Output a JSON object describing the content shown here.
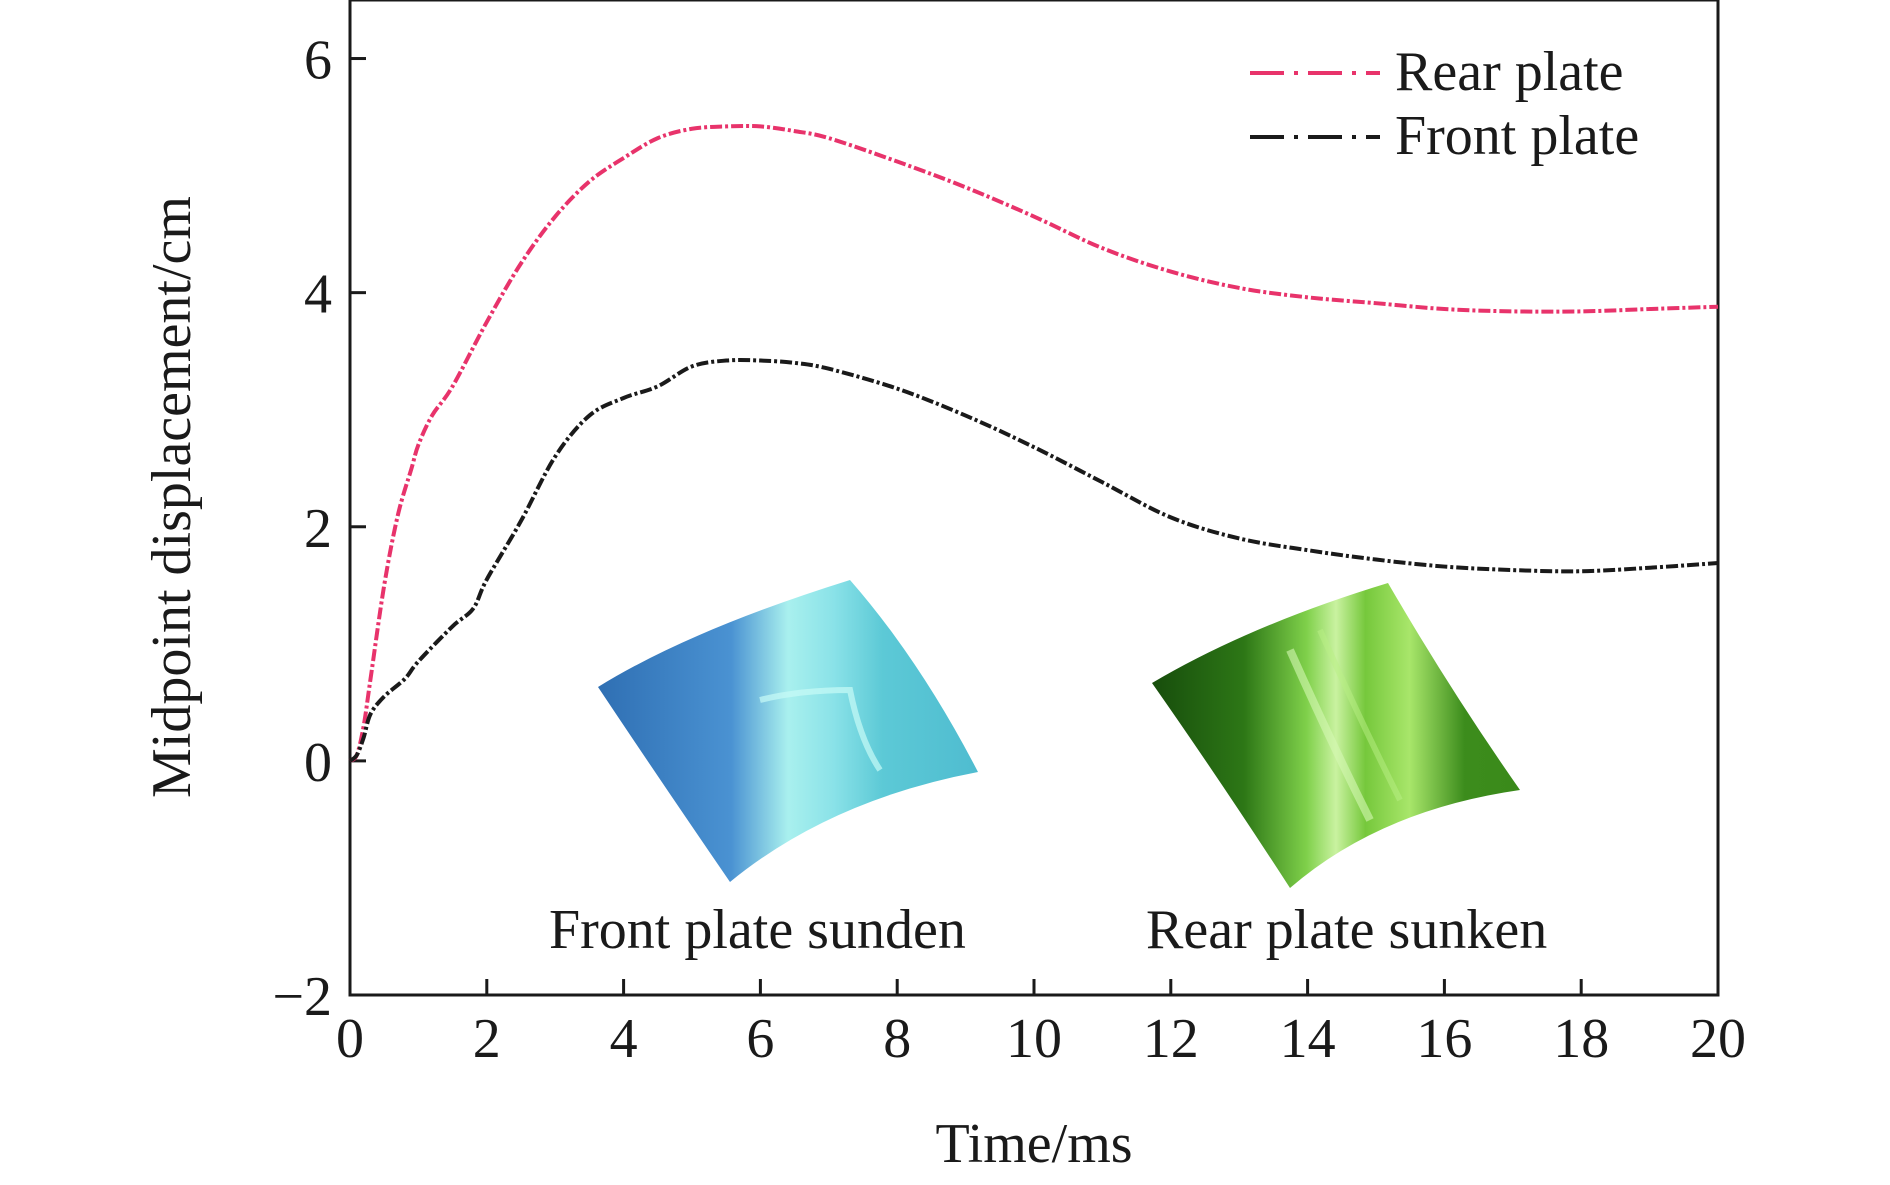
{
  "chart_data": {
    "type": "line",
    "xlabel": "Time/ms",
    "ylabel": "Midpoint displacement/cm",
    "xlim": [
      0,
      20
    ],
    "ylim": [
      -2,
      6.5
    ],
    "xticks": [
      "0",
      "2",
      "4",
      "6",
      "8",
      "10",
      "12",
      "14",
      "16",
      "18",
      "20"
    ],
    "yticks": [
      "−2",
      "0",
      "2",
      "4",
      "6"
    ],
    "xtick_values": [
      0,
      2,
      4,
      6,
      8,
      10,
      12,
      14,
      16,
      18,
      20
    ],
    "ytick_values": [
      -2,
      0,
      2,
      4,
      6
    ],
    "grid": false,
    "legend_position": "top-right",
    "series": [
      {
        "name": "Rear plate",
        "color": "#e8336b",
        "line_style": "dash-dot",
        "x": [
          0,
          0.1,
          0.2,
          0.3,
          0.5,
          0.7,
          0.9,
          1.0,
          1.2,
          1.5,
          2.0,
          2.5,
          3.0,
          3.5,
          4.0,
          4.5,
          5.0,
          5.5,
          6.0,
          6.5,
          7.0,
          8.0,
          9.0,
          10.0,
          11.0,
          12.0,
          13.0,
          14.0,
          15.0,
          16.0,
          17.0,
          18.0,
          19.0,
          20.0
        ],
        "y": [
          0.0,
          0.05,
          0.3,
          0.7,
          1.5,
          2.1,
          2.5,
          2.7,
          2.95,
          3.2,
          3.75,
          4.25,
          4.65,
          4.95,
          5.15,
          5.32,
          5.4,
          5.42,
          5.42,
          5.38,
          5.32,
          5.12,
          4.9,
          4.65,
          4.38,
          4.18,
          4.04,
          3.96,
          3.91,
          3.86,
          3.84,
          3.84,
          3.86,
          3.88
        ]
      },
      {
        "name": "Front plate",
        "color": "#1a1a1a",
        "line_style": "dash-dot",
        "x": [
          0,
          0.1,
          0.2,
          0.3,
          0.5,
          0.8,
          1.0,
          1.5,
          1.8,
          2.0,
          2.5,
          3.0,
          3.5,
          4.0,
          4.5,
          5.0,
          5.5,
          6.0,
          6.5,
          7.0,
          8.0,
          9.0,
          10.0,
          11.0,
          12.0,
          13.0,
          14.0,
          15.0,
          16.0,
          17.0,
          18.0,
          19.0,
          20.0
        ],
        "y": [
          0.0,
          0.05,
          0.2,
          0.4,
          0.55,
          0.7,
          0.85,
          1.15,
          1.3,
          1.55,
          2.05,
          2.6,
          2.95,
          3.1,
          3.2,
          3.37,
          3.42,
          3.42,
          3.4,
          3.35,
          3.18,
          2.95,
          2.68,
          2.38,
          2.08,
          1.9,
          1.8,
          1.72,
          1.66,
          1.63,
          1.62,
          1.65,
          1.69
        ]
      }
    ],
    "insets": [
      {
        "caption": "Front plate sunden",
        "icon": "blue-deformed-plate-render"
      },
      {
        "caption": "Rear plate sunken",
        "icon": "green-deformed-plate-render"
      }
    ]
  }
}
